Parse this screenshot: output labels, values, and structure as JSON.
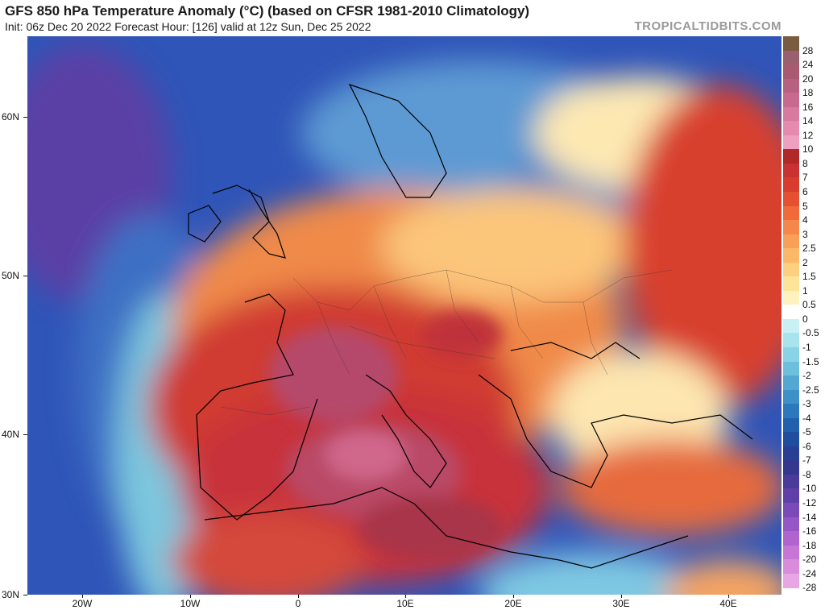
{
  "title": "GFS 850 hPa Temperature Anomaly (°C) (based on CFSR 1981-2010 Climatology)",
  "subtitle": "Init: 06z Dec 20 2022   Forecast Hour: [126]   valid at 12z Sun, Dec 25 2022",
  "brand": "TROPICALTIDBITS.COM",
  "latitude_labels": [
    "60N",
    "50N",
    "40N",
    "30N"
  ],
  "longitude_labels": [
    "20W",
    "10W",
    "0",
    "10E",
    "20E",
    "30E",
    "40E"
  ],
  "legend": {
    "labels": [
      "28",
      "24",
      "20",
      "18",
      "16",
      "14",
      "12",
      "10",
      "8",
      "7",
      "6",
      "5",
      "4",
      "3",
      "2.5",
      "2",
      "1.5",
      "1",
      "0.5",
      "0",
      "-0.5",
      "-1",
      "-1.5",
      "-2",
      "-2.5",
      "-3",
      "-4",
      "-5",
      "-6",
      "-7",
      "-8",
      "-10",
      "-12",
      "-14",
      "-16",
      "-18",
      "-20",
      "-24",
      "-28"
    ],
    "colors": [
      "#7a5a40",
      "#9a6070",
      "#a85a70",
      "#b86080",
      "#c86a90",
      "#d87aa0",
      "#e68ab0",
      "#ef9fc0",
      "#b02828",
      "#c83232",
      "#d83c2c",
      "#e55030",
      "#f06a3a",
      "#f5874a",
      "#f8a058",
      "#fbb868",
      "#fdd080",
      "#fee49a",
      "#fff2bf",
      "#ffffff",
      "#c8f0f5",
      "#a8e4ee",
      "#88d4e6",
      "#6cc0dd",
      "#52a8d2",
      "#3e90c8",
      "#2c78bd",
      "#2260ae",
      "#1f4e9e",
      "#283f93",
      "#35378f",
      "#4a3a9a",
      "#6040a8",
      "#7a4ab8",
      "#9656c6",
      "#b064cf",
      "#c876d5",
      "#d98cdc",
      "#e8a6e4"
    ]
  }
}
